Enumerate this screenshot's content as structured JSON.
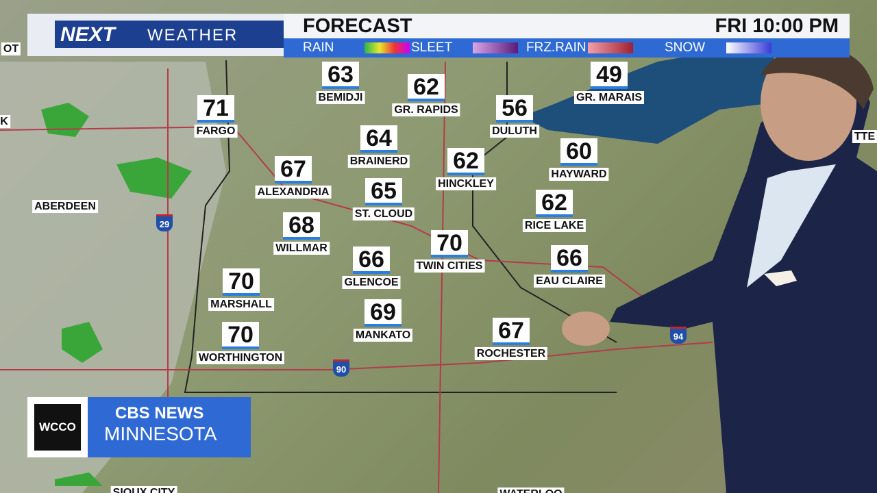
{
  "header": {
    "brand": "NEXT",
    "brand_sub": "WEATHER",
    "title": "FORECAST",
    "time": "FRI 10:00 PM"
  },
  "legend": [
    "RAIN",
    "SLEET",
    "FRZ.RAIN",
    "SNOW"
  ],
  "cities": [
    {
      "temp": "63",
      "name": "BEMIDJI"
    },
    {
      "temp": "62",
      "name": "GR. RAPIDS"
    },
    {
      "temp": "49",
      "name": "GR. MARAIS"
    },
    {
      "temp": "71",
      "name": "FARGO"
    },
    {
      "temp": "56",
      "name": "DULUTH"
    },
    {
      "temp": "64",
      "name": "BRAINERD"
    },
    {
      "temp": "62",
      "name": "HINCKLEY"
    },
    {
      "temp": "60",
      "name": "HAYWARD"
    },
    {
      "temp": "67",
      "name": "ALEXANDRIA"
    },
    {
      "temp": "65",
      "name": "ST. CLOUD"
    },
    {
      "temp": "62",
      "name": "RICE LAKE"
    },
    {
      "temp": "68",
      "name": "WILLMAR"
    },
    {
      "temp": "70",
      "name": "TWIN CITIES"
    },
    {
      "temp": "66",
      "name": "GLENCOE"
    },
    {
      "temp": "66",
      "name": "EAU CLAIRE"
    },
    {
      "temp": "70",
      "name": "MARSHALL"
    },
    {
      "temp": "69",
      "name": "MANKATO"
    },
    {
      "temp": "70",
      "name": "WORTHINGTON"
    },
    {
      "temp": "67",
      "name": "ROCHESTER"
    }
  ],
  "map_labels": [
    "OT",
    "K",
    "ABERDEEN",
    "SIOUX CITY",
    "TTE",
    "WATERLOO"
  ],
  "highways": [
    "29",
    "90",
    "94"
  ],
  "station": {
    "call": "WCCO",
    "network": "CBS NEWS",
    "region": "MINNESOTA"
  }
}
